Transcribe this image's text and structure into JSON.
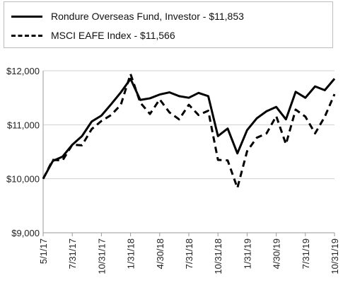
{
  "chart_data": {
    "type": "line",
    "title": "",
    "xlabel": "",
    "ylabel": "",
    "ylim": [
      9000,
      12000
    ],
    "y_ticks": [
      "$9,000",
      "$10,000",
      "$11,000",
      "$12,000"
    ],
    "y_tick_values": [
      9000,
      10000,
      11000,
      12000
    ],
    "x_tick_labels": [
      "5/1/17",
      "7/31/17",
      "10/31/17",
      "1/31/18",
      "4/30/18",
      "7/31/18",
      "10/31/18",
      "1/31/19",
      "4/30/19",
      "7/31/19",
      "10/31/19"
    ],
    "x_tick_index": [
      0,
      3,
      6,
      9,
      12,
      15,
      18,
      21,
      24,
      27,
      30
    ],
    "x_count": 31,
    "grid": "horizontal",
    "legend_position": "top",
    "series": [
      {
        "name": "Rondure Overseas Fund, Investor - $11,853",
        "style": "solid",
        "color": "#000000",
        "values": [
          10000,
          10330,
          10410,
          10630,
          10790,
          11060,
          11170,
          11380,
          11600,
          11850,
          11460,
          11490,
          11560,
          11600,
          11530,
          11500,
          11590,
          11530,
          10790,
          10930,
          10470,
          10900,
          11120,
          11250,
          11330,
          11100,
          11610,
          11500,
          11710,
          11640,
          11853
        ]
      },
      {
        "name": "MSCI EAFE Index - $11,566",
        "style": "dashed",
        "color": "#000000",
        "values": [
          10000,
          10350,
          10340,
          10630,
          10620,
          10920,
          11070,
          11180,
          11370,
          11940,
          11410,
          11200,
          11470,
          11230,
          11100,
          11370,
          11180,
          11260,
          10350,
          10340,
          9830,
          10510,
          10760,
          10840,
          11160,
          10640,
          11280,
          11150,
          10840,
          11150,
          11566
        ]
      }
    ]
  }
}
